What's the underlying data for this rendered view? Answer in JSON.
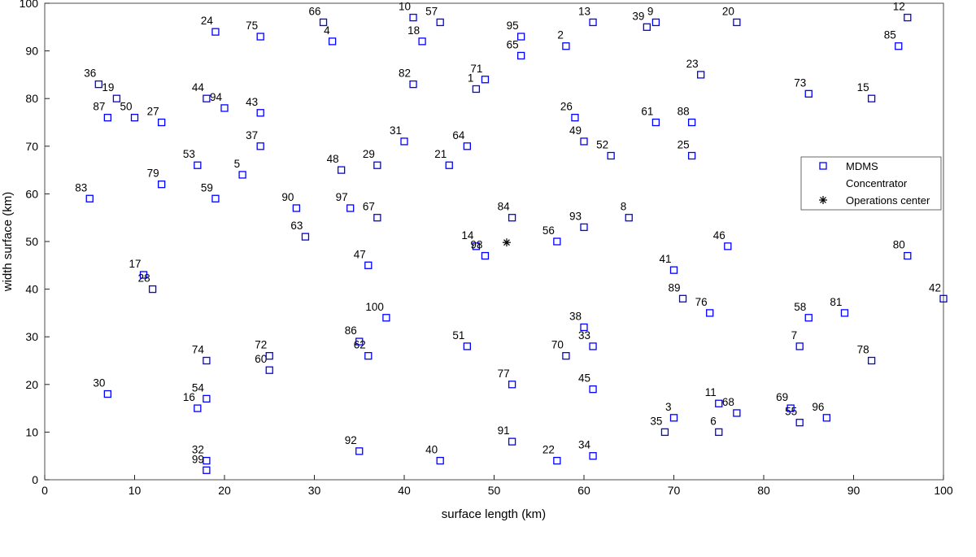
{
  "chart_data": {
    "type": "scatter",
    "x_label": "surface length (km)",
    "y_label": "width surface (km)",
    "xlim": [
      0,
      100
    ],
    "ylim": [
      0,
      100
    ],
    "xticks": [
      0,
      10,
      20,
      30,
      40,
      50,
      60,
      70,
      80,
      90,
      100
    ],
    "yticks": [
      0,
      10,
      20,
      30,
      40,
      50,
      60,
      70,
      80,
      90,
      100
    ],
    "legend": "right",
    "series": [
      {
        "name": "MDMS",
        "color": "#0000ff",
        "marker": "square",
        "x": [
          48,
          58,
          70,
          32,
          22,
          75,
          84,
          65,
          68,
          41,
          75,
          96,
          61,
          48,
          92,
          17,
          11,
          42,
          8,
          77,
          45,
          57,
          73,
          19,
          72,
          59,
          13,
          12,
          37,
          7,
          40,
          18,
          61,
          61,
          69,
          6,
          24,
          60,
          67,
          44,
          70,
          100,
          24,
          18,
          61,
          76,
          36,
          33,
          60,
          10,
          47,
          63,
          17,
          18,
          84,
          57,
          44,
          85,
          19,
          25,
          68,
          36,
          29,
          47,
          53,
          31,
          37,
          77,
          83,
          58,
          49,
          25,
          85,
          18,
          24,
          74,
          52,
          92,
          13,
          96,
          89,
          41,
          5,
          52,
          95,
          35,
          7,
          72,
          71,
          28,
          52,
          35,
          60,
          20,
          53,
          87,
          34,
          49,
          18,
          38
        ],
        "y": [
          82,
          91,
          13,
          92,
          64,
          10,
          28,
          55,
          96,
          97,
          16,
          97,
          96,
          49,
          80,
          15,
          43,
          92,
          80,
          96,
          66,
          4,
          85,
          94,
          68,
          76,
          75,
          40,
          66,
          18,
          71,
          4,
          28,
          5,
          10,
          83,
          70,
          32,
          95,
          4,
          44,
          38,
          77,
          80,
          19,
          49,
          45,
          65,
          71,
          76,
          28,
          68,
          66,
          17,
          12,
          50,
          96,
          34,
          59,
          23,
          75,
          26,
          51,
          70,
          89,
          96,
          55,
          14,
          15,
          26,
          84,
          26,
          81,
          25,
          93,
          35,
          20,
          25,
          62,
          47,
          35,
          83,
          59,
          55,
          91,
          29,
          76,
          75,
          38,
          57,
          8,
          6,
          53,
          78,
          93,
          13,
          57,
          47,
          2,
          34
        ],
        "labels": [
          1,
          2,
          3,
          4,
          5,
          6,
          7,
          8,
          9,
          10,
          11,
          12,
          13,
          14,
          15,
          16,
          17,
          18,
          19,
          20,
          21,
          22,
          23,
          24,
          25,
          26,
          27,
          28,
          29,
          30,
          31,
          32,
          33,
          34,
          35,
          36,
          37,
          38,
          39,
          40,
          41,
          42,
          43,
          44,
          45,
          46,
          47,
          48,
          49,
          50,
          51,
          52,
          53,
          54,
          55,
          56,
          57,
          58,
          59,
          60,
          61,
          62,
          63,
          64,
          65,
          66,
          67,
          68,
          69,
          70,
          71,
          72,
          73,
          74,
          75,
          76,
          77,
          78,
          79,
          80,
          81,
          82,
          83,
          84,
          85,
          86,
          87,
          88,
          89,
          90,
          91,
          92,
          93,
          94,
          95,
          96,
          97,
          98,
          99,
          100
        ]
      },
      {
        "name": "Concentrator",
        "color": "#0000ff",
        "marker": "none",
        "x": [],
        "y": []
      },
      {
        "name": "Operations center",
        "color": "#000000",
        "marker": "star",
        "x": [
          51.4
        ],
        "y": [
          49.8
        ]
      }
    ]
  }
}
